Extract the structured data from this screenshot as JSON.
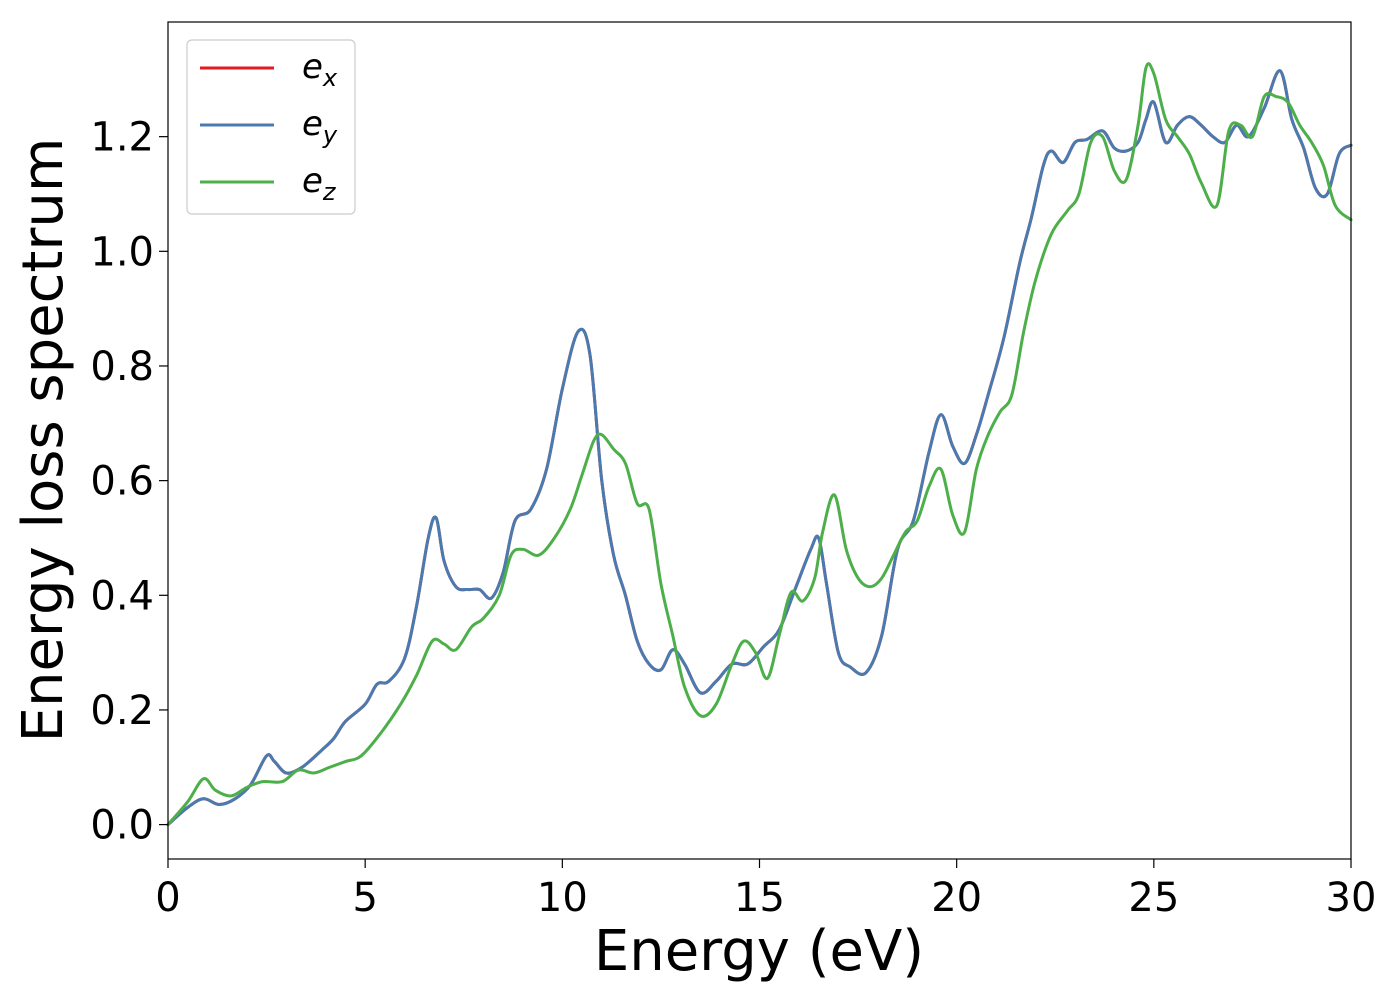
{
  "chart_data": {
    "type": "line",
    "xlabel": "Energy (eV)",
    "ylabel": "Energy loss spectrum",
    "xlim": [
      0,
      30
    ],
    "ylim": [
      -0.06,
      1.4
    ],
    "xticks": [
      0,
      5,
      10,
      15,
      20,
      25,
      30
    ],
    "xtick_labels": [
      "0",
      "5",
      "10",
      "15",
      "20",
      "25",
      "30"
    ],
    "yticks": [
      0.0,
      0.2,
      0.4,
      0.6,
      0.8,
      1.0,
      1.2
    ],
    "ytick_labels": [
      "0.0",
      "0.2",
      "0.4",
      "0.6",
      "0.8",
      "1.0",
      "1.2"
    ],
    "grid": false,
    "legend_position": "top-left",
    "series": [
      {
        "name": "e_x",
        "legend_base": "e",
        "legend_sub": "x",
        "color": "#e41a1c",
        "x": [
          0,
          0.5,
          0.9,
          1.3,
          1.7,
          2.1,
          2.5,
          2.7,
          3.0,
          3.4,
          3.9,
          4.2,
          4.5,
          5.0,
          5.3,
          5.6,
          6.0,
          6.3,
          6.6,
          6.8,
          7.0,
          7.3,
          7.6,
          7.9,
          8.2,
          8.5,
          8.8,
          9.2,
          9.6,
          10.0,
          10.4,
          10.7,
          11.0,
          11.3,
          11.6,
          11.9,
          12.2,
          12.5,
          12.8,
          13.1,
          13.5,
          13.9,
          14.3,
          14.7,
          15.1,
          15.5,
          15.9,
          16.3,
          16.5,
          16.7,
          17.0,
          17.3,
          17.7,
          18.1,
          18.5,
          18.9,
          19.3,
          19.6,
          19.9,
          20.2,
          20.5,
          20.8,
          21.2,
          21.6,
          21.9,
          22.2,
          22.4,
          22.7,
          23.0,
          23.3,
          23.7,
          24.0,
          24.3,
          24.6,
          24.8,
          25.0,
          25.3,
          25.6,
          25.9,
          26.2,
          26.5,
          26.8,
          27.1,
          27.4,
          27.8,
          28.2,
          28.5,
          28.8,
          29.1,
          29.4,
          29.7,
          30.0
        ],
        "values": [
          0,
          0.03,
          0.045,
          0.035,
          0.045,
          0.07,
          0.12,
          0.11,
          0.09,
          0.1,
          0.13,
          0.15,
          0.18,
          0.21,
          0.245,
          0.25,
          0.29,
          0.38,
          0.5,
          0.535,
          0.46,
          0.415,
          0.41,
          0.41,
          0.395,
          0.44,
          0.53,
          0.55,
          0.62,
          0.76,
          0.86,
          0.82,
          0.6,
          0.47,
          0.4,
          0.32,
          0.28,
          0.27,
          0.305,
          0.28,
          0.23,
          0.25,
          0.28,
          0.28,
          0.31,
          0.34,
          0.41,
          0.48,
          0.5,
          0.42,
          0.3,
          0.275,
          0.265,
          0.33,
          0.48,
          0.53,
          0.65,
          0.715,
          0.66,
          0.63,
          0.68,
          0.75,
          0.85,
          0.98,
          1.06,
          1.15,
          1.175,
          1.155,
          1.19,
          1.195,
          1.21,
          1.18,
          1.175,
          1.19,
          1.23,
          1.26,
          1.19,
          1.22,
          1.235,
          1.22,
          1.2,
          1.19,
          1.22,
          1.2,
          1.25,
          1.315,
          1.23,
          1.18,
          1.11,
          1.1,
          1.17,
          1.185
        ]
      },
      {
        "name": "e_y",
        "legend_base": "e",
        "legend_sub": "y",
        "color": "#4a7bb0",
        "x": [
          0,
          0.5,
          0.9,
          1.3,
          1.7,
          2.1,
          2.5,
          2.7,
          3.0,
          3.4,
          3.9,
          4.2,
          4.5,
          5.0,
          5.3,
          5.6,
          6.0,
          6.3,
          6.6,
          6.8,
          7.0,
          7.3,
          7.6,
          7.9,
          8.2,
          8.5,
          8.8,
          9.2,
          9.6,
          10.0,
          10.4,
          10.7,
          11.0,
          11.3,
          11.6,
          11.9,
          12.2,
          12.5,
          12.8,
          13.1,
          13.5,
          13.9,
          14.3,
          14.7,
          15.1,
          15.5,
          15.9,
          16.3,
          16.5,
          16.7,
          17.0,
          17.3,
          17.7,
          18.1,
          18.5,
          18.9,
          19.3,
          19.6,
          19.9,
          20.2,
          20.5,
          20.8,
          21.2,
          21.6,
          21.9,
          22.2,
          22.4,
          22.7,
          23.0,
          23.3,
          23.7,
          24.0,
          24.3,
          24.6,
          24.8,
          25.0,
          25.3,
          25.6,
          25.9,
          26.2,
          26.5,
          26.8,
          27.1,
          27.4,
          27.8,
          28.2,
          28.5,
          28.8,
          29.1,
          29.4,
          29.7,
          30.0
        ],
        "values": [
          0,
          0.03,
          0.045,
          0.035,
          0.045,
          0.07,
          0.12,
          0.11,
          0.09,
          0.1,
          0.13,
          0.15,
          0.18,
          0.21,
          0.245,
          0.25,
          0.29,
          0.38,
          0.5,
          0.535,
          0.46,
          0.415,
          0.41,
          0.41,
          0.395,
          0.44,
          0.53,
          0.55,
          0.62,
          0.76,
          0.86,
          0.82,
          0.6,
          0.47,
          0.4,
          0.32,
          0.28,
          0.27,
          0.305,
          0.28,
          0.23,
          0.25,
          0.28,
          0.28,
          0.31,
          0.34,
          0.41,
          0.48,
          0.5,
          0.42,
          0.3,
          0.275,
          0.265,
          0.33,
          0.48,
          0.53,
          0.65,
          0.715,
          0.66,
          0.63,
          0.68,
          0.75,
          0.85,
          0.98,
          1.06,
          1.15,
          1.175,
          1.155,
          1.19,
          1.195,
          1.21,
          1.18,
          1.175,
          1.19,
          1.23,
          1.26,
          1.19,
          1.22,
          1.235,
          1.22,
          1.2,
          1.19,
          1.22,
          1.2,
          1.25,
          1.315,
          1.23,
          1.18,
          1.11,
          1.1,
          1.17,
          1.185
        ]
      },
      {
        "name": "e_z",
        "legend_base": "e",
        "legend_sub": "z",
        "color": "#4daf4a",
        "x": [
          0,
          0.5,
          0.9,
          1.2,
          1.6,
          2.0,
          2.4,
          2.9,
          3.3,
          3.7,
          4.1,
          4.5,
          4.9,
          5.4,
          5.9,
          6.3,
          6.7,
          7.0,
          7.3,
          7.7,
          8.0,
          8.4,
          8.7,
          9.0,
          9.4,
          9.8,
          10.2,
          10.5,
          10.8,
          11.0,
          11.3,
          11.6,
          11.9,
          12.2,
          12.5,
          12.8,
          13.1,
          13.5,
          13.9,
          14.3,
          14.6,
          14.9,
          15.2,
          15.5,
          15.8,
          16.1,
          16.4,
          16.6,
          16.9,
          17.2,
          17.5,
          17.8,
          18.1,
          18.4,
          18.7,
          19.0,
          19.3,
          19.6,
          19.9,
          20.2,
          20.5,
          20.8,
          21.1,
          21.4,
          21.7,
          22.0,
          22.4,
          22.8,
          23.1,
          23.4,
          23.7,
          24.0,
          24.3,
          24.6,
          24.8,
          25.0,
          25.3,
          25.6,
          25.9,
          26.2,
          26.6,
          26.9,
          27.2,
          27.5,
          27.8,
          28.1,
          28.4,
          28.7,
          29.0,
          29.3,
          29.6,
          30.0
        ],
        "values": [
          0,
          0.04,
          0.08,
          0.06,
          0.05,
          0.065,
          0.075,
          0.075,
          0.095,
          0.09,
          0.1,
          0.11,
          0.12,
          0.16,
          0.21,
          0.26,
          0.32,
          0.315,
          0.305,
          0.345,
          0.36,
          0.4,
          0.47,
          0.48,
          0.47,
          0.5,
          0.55,
          0.61,
          0.67,
          0.68,
          0.655,
          0.63,
          0.56,
          0.55,
          0.42,
          0.33,
          0.24,
          0.19,
          0.21,
          0.28,
          0.32,
          0.3,
          0.255,
          0.33,
          0.405,
          0.39,
          0.43,
          0.51,
          0.575,
          0.48,
          0.43,
          0.415,
          0.43,
          0.47,
          0.51,
          0.53,
          0.59,
          0.62,
          0.54,
          0.51,
          0.62,
          0.68,
          0.72,
          0.75,
          0.86,
          0.95,
          1.03,
          1.07,
          1.1,
          1.19,
          1.2,
          1.14,
          1.125,
          1.22,
          1.32,
          1.31,
          1.23,
          1.2,
          1.17,
          1.12,
          1.08,
          1.21,
          1.22,
          1.2,
          1.27,
          1.27,
          1.26,
          1.22,
          1.19,
          1.15,
          1.08,
          1.055
        ]
      }
    ]
  }
}
